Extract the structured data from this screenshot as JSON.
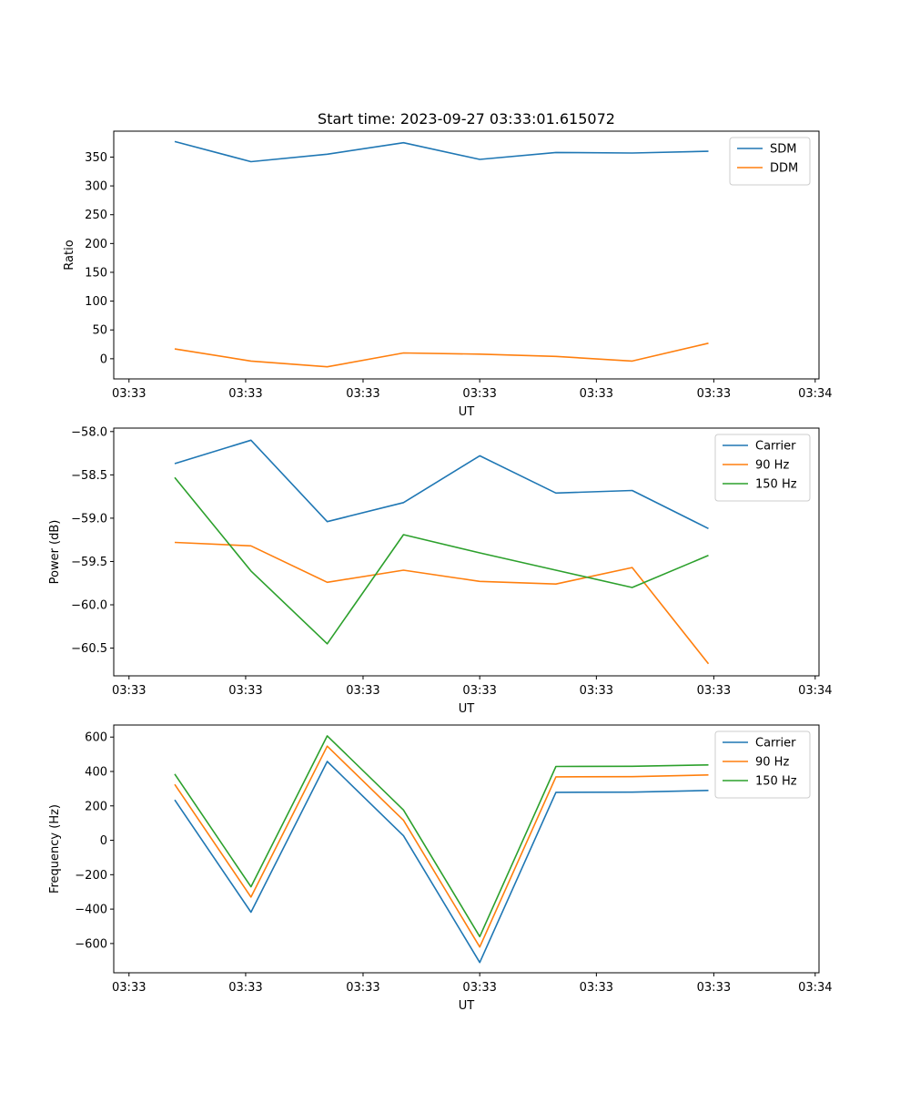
{
  "figure_title": "Start time: 2023-09-27 03:33:01.615072",
  "chart_data": [
    {
      "type": "line",
      "title": "Start time: 2023-09-27 03:33:01.615072",
      "xlabel": "UT",
      "ylabel": "Ratio",
      "x": [
        1,
        2,
        3,
        4,
        5,
        6,
        7,
        8
      ],
      "xlim": [
        0.2,
        9.45
      ],
      "x_ticks": [
        0.4,
        1.93,
        3.47,
        5.0,
        6.53,
        8.07,
        9.4
      ],
      "x_tick_labels": [
        "03:33",
        "03:33",
        "03:33",
        "03:33",
        "03:33",
        "03:33",
        "03:34"
      ],
      "ylim": [
        -35,
        395
      ],
      "y_ticks": [
        0,
        50,
        100,
        150,
        200,
        250,
        300,
        350
      ],
      "y_tick_labels": [
        "0",
        "50",
        "100",
        "150",
        "200",
        "250",
        "300",
        "350"
      ],
      "legend_position": "top-right",
      "series": [
        {
          "name": "SDM",
          "color": "#1f77b4",
          "values": [
            377,
            342,
            355,
            375,
            346,
            358,
            357,
            360
          ]
        },
        {
          "name": "DDM",
          "color": "#ff7f0e",
          "values": [
            17,
            -4,
            -14,
            10,
            8,
            4,
            -4,
            27
          ]
        }
      ]
    },
    {
      "type": "line",
      "title": "",
      "xlabel": "UT",
      "ylabel": "Power (dB)",
      "x": [
        1,
        2,
        3,
        4,
        5,
        6,
        7,
        8
      ],
      "xlim": [
        0.2,
        9.45
      ],
      "x_ticks": [
        0.4,
        1.93,
        3.47,
        5.0,
        6.53,
        8.07,
        9.4
      ],
      "x_tick_labels": [
        "03:33",
        "03:33",
        "03:33",
        "03:33",
        "03:33",
        "03:33",
        "03:34"
      ],
      "ylim": [
        -60.82,
        -57.96
      ],
      "y_ticks": [
        -60.5,
        -60.0,
        -59.5,
        -59.0,
        -58.5,
        -58.0
      ],
      "y_tick_labels": [
        "−60.5",
        "−60.0",
        "−59.5",
        "−59.0",
        "−58.5",
        "−58.0"
      ],
      "legend_position": "top-right",
      "series": [
        {
          "name": "Carrier",
          "color": "#1f77b4",
          "values": [
            -58.37,
            -58.1,
            -59.04,
            -58.82,
            -58.28,
            -58.71,
            -58.68,
            -59.12
          ]
        },
        {
          "name": "90 Hz",
          "color": "#ff7f0e",
          "values": [
            -59.28,
            -59.32,
            -59.74,
            -59.6,
            -59.73,
            -59.76,
            -59.57,
            -60.68
          ]
        },
        {
          "name": "150 Hz",
          "color": "#2ca02c",
          "values": [
            -58.53,
            -59.61,
            -60.45,
            -59.19,
            -59.4,
            -59.6,
            -59.8,
            -59.43
          ]
        }
      ]
    },
    {
      "type": "line",
      "title": "",
      "xlabel": "UT",
      "ylabel": "Frequency (Hz)",
      "x": [
        1,
        2,
        3,
        4,
        5,
        6,
        7,
        8
      ],
      "xlim": [
        0.2,
        9.45
      ],
      "x_ticks": [
        0.4,
        1.93,
        3.47,
        5.0,
        6.53,
        8.07,
        9.4
      ],
      "x_tick_labels": [
        "03:33",
        "03:33",
        "03:33",
        "03:33",
        "03:33",
        "03:33",
        "03:34"
      ],
      "ylim": [
        -770,
        670
      ],
      "y_ticks": [
        -600,
        -400,
        -200,
        0,
        200,
        400,
        600
      ],
      "y_tick_labels": [
        "−600",
        "−400",
        "−200",
        "0",
        "200",
        "400",
        "600"
      ],
      "legend_position": "top-right",
      "series": [
        {
          "name": "Carrier",
          "color": "#1f77b4",
          "values": [
            235,
            -418,
            458,
            26,
            -710,
            279,
            280,
            290
          ]
        },
        {
          "name": "90 Hz",
          "color": "#ff7f0e",
          "values": [
            325,
            -330,
            547,
            116,
            -620,
            369,
            370,
            380
          ]
        },
        {
          "name": "150 Hz",
          "color": "#2ca02c",
          "values": [
            385,
            -270,
            607,
            176,
            -560,
            429,
            430,
            438
          ]
        }
      ]
    }
  ]
}
